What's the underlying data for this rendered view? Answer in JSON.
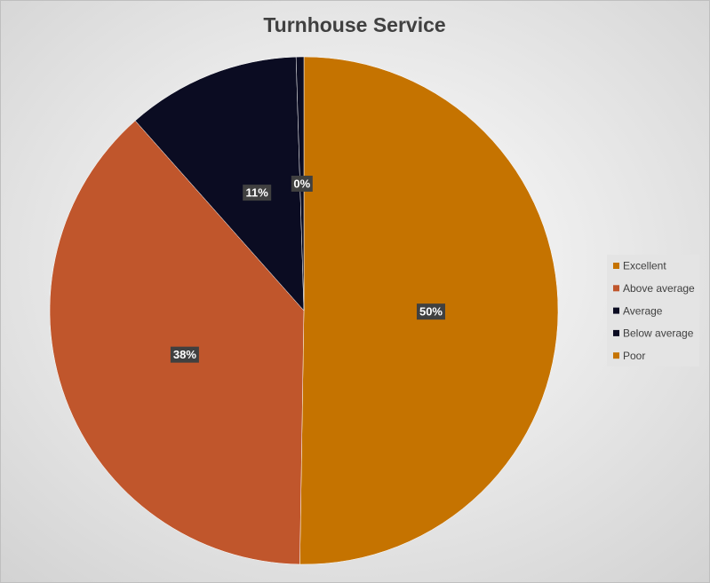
{
  "chart_data": {
    "type": "pie",
    "title": "Turnhouse Service",
    "categories": [
      "Excellent",
      "Above average",
      "Average",
      "Below average",
      "Poor"
    ],
    "values": [
      50,
      38,
      11,
      0.49,
      0
    ],
    "value_labels": [
      "50%",
      "38%",
      "11%",
      "0%",
      null
    ],
    "colors": [
      "#c57300",
      "#c0562c",
      "#0b0c22",
      "#0b0c22",
      "#c57300"
    ],
    "legend": "right"
  }
}
